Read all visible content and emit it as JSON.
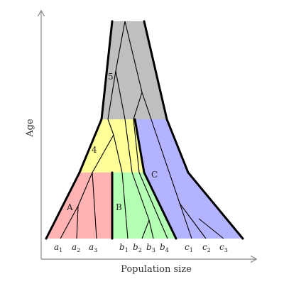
{
  "axes": {
    "x_label": "Population size",
    "y_label": "Age"
  },
  "colors": {
    "axis": "#888888",
    "outline": "#000000",
    "region_A": "#ffb3b3",
    "region_B": "#b3ffb3",
    "region_C": "#b3b3ff",
    "region_4": "#ffff99",
    "region_5": "#bfbfbf"
  },
  "regions": [
    {
      "id": "A",
      "label": "A"
    },
    {
      "id": "B",
      "label": "B"
    },
    {
      "id": "C",
      "label": "C"
    },
    {
      "id": "4",
      "label": "4"
    },
    {
      "id": "5",
      "label": "5"
    }
  ],
  "leaves": [
    {
      "base": "a",
      "sub": "1"
    },
    {
      "base": "a",
      "sub": "2"
    },
    {
      "base": "a",
      "sub": "3"
    },
    {
      "base": "b",
      "sub": "1"
    },
    {
      "base": "b",
      "sub": "2"
    },
    {
      "base": "b",
      "sub": "3"
    },
    {
      "base": "b",
      "sub": "4"
    },
    {
      "base": "c",
      "sub": "1"
    },
    {
      "base": "c",
      "sub": "2"
    },
    {
      "base": "c",
      "sub": "3"
    }
  ]
}
